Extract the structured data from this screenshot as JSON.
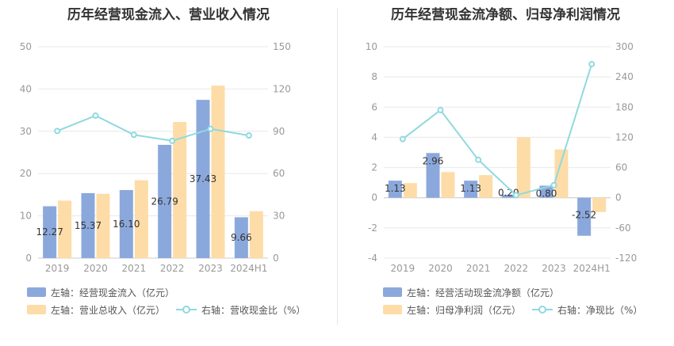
{
  "colors": {
    "blue": "#8ba8dc",
    "orange": "#fddca7",
    "line": "#8fd9df",
    "grid": "#e8e8e8",
    "axis_text": "#999999"
  },
  "chart_data": [
    {
      "type": "bar",
      "title": "历年经营现金流入、营业收入情况",
      "categories": [
        "2019",
        "2020",
        "2021",
        "2022",
        "2023",
        "2024H1"
      ],
      "y_left": {
        "ylim": [
          0,
          50
        ],
        "ticks": [
          "0",
          "10",
          "20",
          "30",
          "40",
          "50"
        ]
      },
      "y_right": {
        "ylim": [
          0,
          150
        ],
        "ticks": [
          "0",
          "30",
          "60",
          "90",
          "120",
          "150"
        ]
      },
      "series": [
        {
          "name": "左轴：经营现金流入（亿元）",
          "type": "bar",
          "axis": "left",
          "color": "#8ba8dc",
          "values": [
            12.27,
            15.37,
            16.1,
            26.79,
            37.43,
            9.66
          ],
          "labels": [
            "12.27",
            "15.37",
            "16.10",
            "26.79",
            "37.43",
            "9.66"
          ]
        },
        {
          "name": "左轴：营业总收入（亿元）",
          "type": "bar",
          "axis": "left",
          "color": "#fddca7",
          "values": [
            13.6,
            15.2,
            18.4,
            32.2,
            40.8,
            11.1
          ]
        },
        {
          "name": "右轴：营收现金比（%）",
          "type": "line",
          "axis": "right",
          "color": "#8fd9df",
          "values": [
            90.2,
            101.1,
            87.5,
            83.2,
            91.7,
            87.0
          ]
        }
      ],
      "legend": [
        "左轴：经营现金流入（亿元）",
        "左轴：营业总收入（亿元）",
        "右轴：营收现金比（%）"
      ]
    },
    {
      "type": "bar",
      "title": "历年经营现金流净额、归母净利润情况",
      "categories": [
        "2019",
        "2020",
        "2021",
        "2022",
        "2023",
        "2024H1"
      ],
      "y_left": {
        "ylim": [
          -4,
          10
        ],
        "ticks": [
          "-4",
          "-2",
          "0",
          "2",
          "4",
          "6",
          "8",
          "10"
        ]
      },
      "y_right": {
        "ylim": [
          -120,
          300
        ],
        "ticks": [
          "-120",
          "-60",
          "0",
          "60",
          "120",
          "180",
          "240",
          "300"
        ]
      },
      "series": [
        {
          "name": "左轴：经营活动现金流净额（亿元）",
          "type": "bar",
          "axis": "left",
          "color": "#8ba8dc",
          "values": [
            1.13,
            2.96,
            1.13,
            0.2,
            0.8,
            -2.52
          ],
          "labels": [
            "1.13",
            "2.96",
            "1.13",
            "0.20",
            "0.80",
            "-2.52"
          ]
        },
        {
          "name": "左轴：归母净利润（亿元）",
          "type": "bar",
          "axis": "left",
          "color": "#fddca7",
          "values": [
            0.97,
            1.7,
            1.5,
            4.0,
            3.2,
            -0.95
          ]
        },
        {
          "name": "右轴：净现比（%）",
          "type": "line",
          "axis": "right",
          "color": "#8fd9df",
          "values": [
            116.5,
            174.1,
            75.3,
            5.0,
            25.0,
            265.3
          ]
        }
      ],
      "legend": [
        "左轴：经营活动现金流净额（亿元）",
        "左轴：归母净利润（亿元）",
        "右轴：净现比（%）"
      ]
    }
  ]
}
